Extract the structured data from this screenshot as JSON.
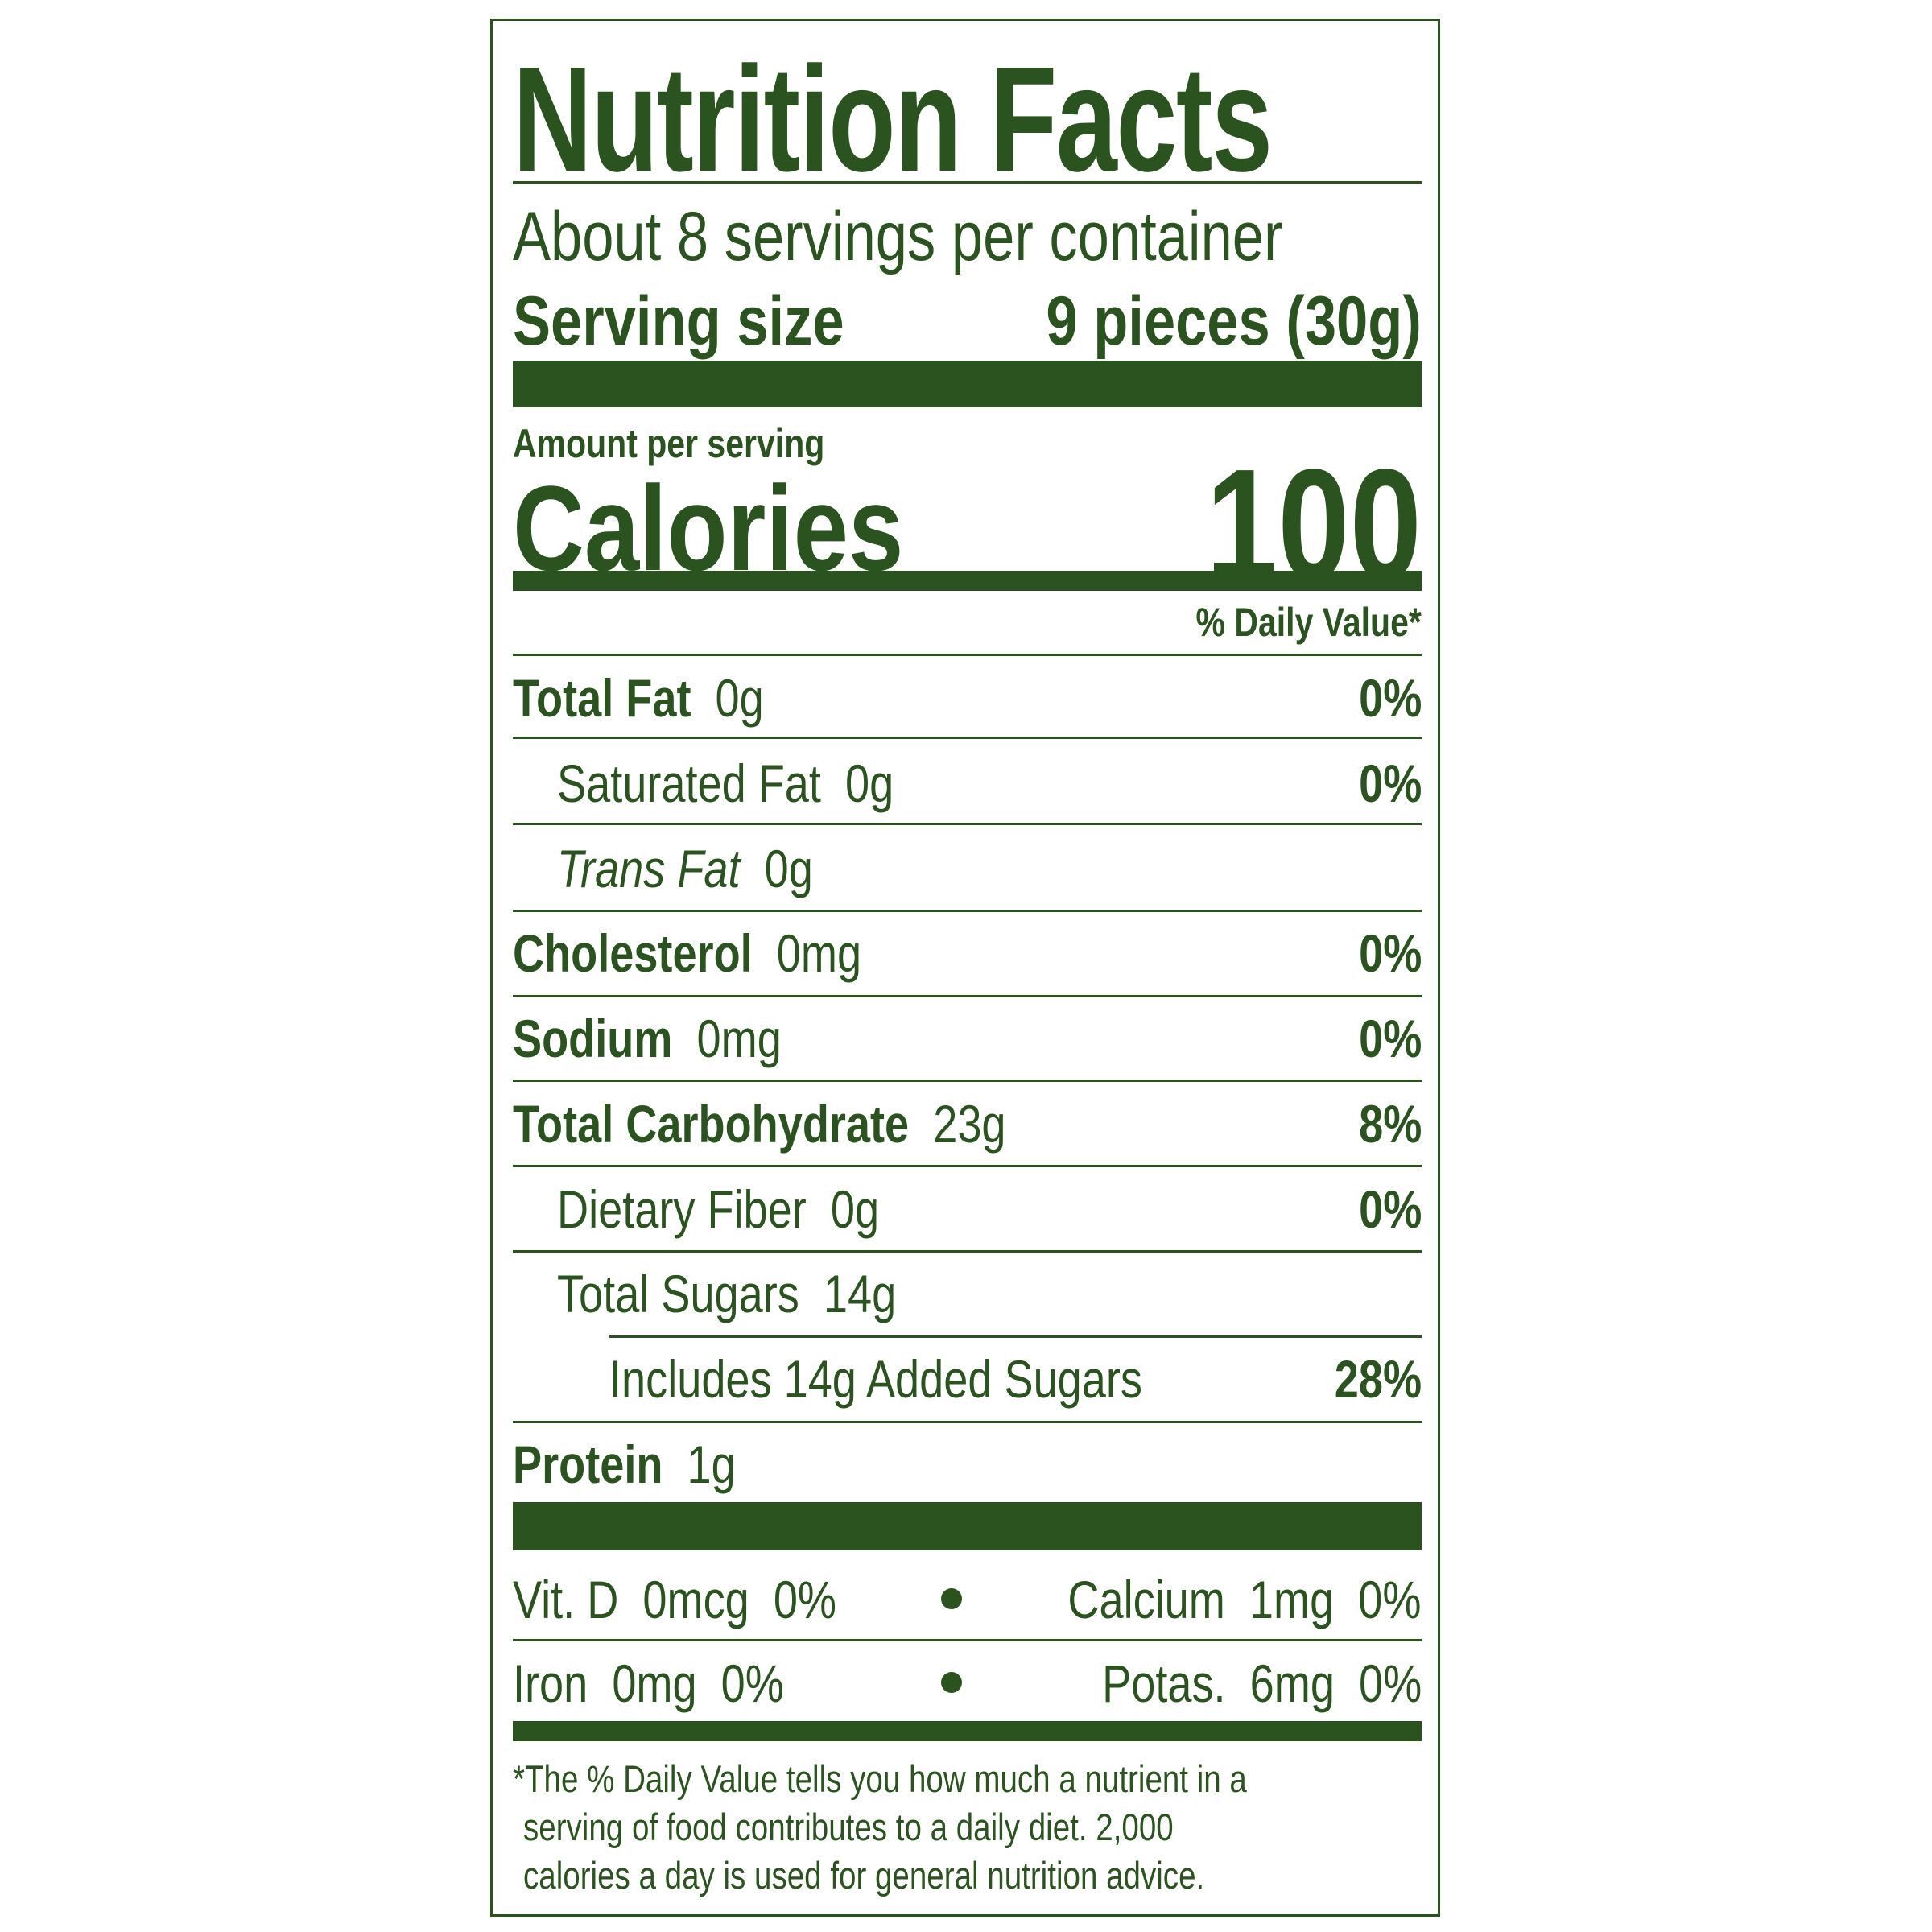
{
  "title": "Nutrition Facts",
  "servings_per_container": "About 8 servings per container",
  "serving_size": {
    "label": "Serving size",
    "value": "9 pieces (30g)"
  },
  "amount_per_serving": "Amount per serving",
  "calories": {
    "label": "Calories",
    "value": "100"
  },
  "daily_value_header": "% Daily Value*",
  "nutrients": [
    {
      "name": "Total Fat",
      "amount": "0g",
      "dv": "0%"
    },
    {
      "name": "Saturated Fat",
      "amount": "0g",
      "dv": "0%"
    },
    {
      "name": "Trans Fat",
      "amount": "0g",
      "dv": ""
    },
    {
      "name": "Cholesterol",
      "amount": "0mg",
      "dv": "0%"
    },
    {
      "name": "Sodium",
      "amount": "0mg",
      "dv": "0%"
    },
    {
      "name": "Total Carbohydrate",
      "amount": "23g",
      "dv": "8%"
    },
    {
      "name": "Dietary Fiber",
      "amount": "0g",
      "dv": "0%"
    },
    {
      "name": "Total Sugars",
      "amount": "14g",
      "dv": ""
    },
    {
      "name": "Includes 14g Added Sugars",
      "amount": "",
      "dv": "28%"
    },
    {
      "name": "Protein",
      "amount": "1g",
      "dv": ""
    }
  ],
  "micronutrients": [
    {
      "left": "Vit. D  0mcg  0%",
      "right": "Calcium  1mg  0%"
    },
    {
      "left": "Iron  0mg  0%",
      "right": "Potas.  6mg  0%"
    }
  ],
  "footnote": [
    "*The % Daily Value tells you how much a nutrient in a",
    "serving of food contributes to a daily diet. 2,000",
    "calories a day is used for general nutrition advice."
  ],
  "colors": {
    "label_green": "#2b5320"
  }
}
